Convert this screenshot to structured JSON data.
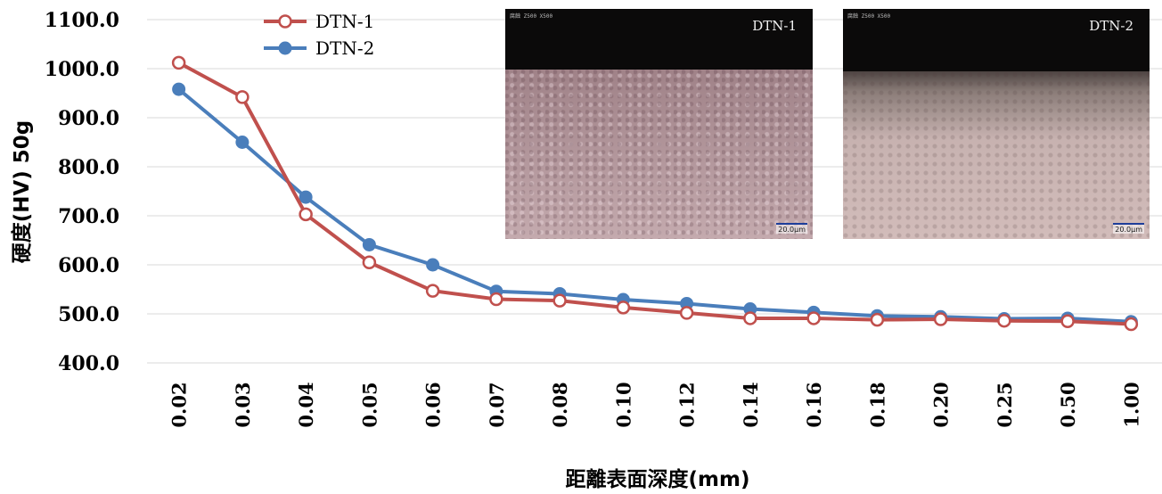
{
  "chart_data": {
    "type": "line",
    "categories": [
      "0.02",
      "0.03",
      "0.04",
      "0.05",
      "0.06",
      "0.07",
      "0.08",
      "0.10",
      "0.12",
      "0.14",
      "0.16",
      "0.18",
      "0.20",
      "0.25",
      "0.50",
      "1.00"
    ],
    "series": [
      {
        "name": "DTN-1",
        "color": "#c0504d",
        "marker": "hollow-circle",
        "values": [
          1012,
          942,
          703,
          605,
          547,
          530,
          527,
          513,
          502,
          491,
          491,
          488,
          489,
          486,
          485,
          479
        ]
      },
      {
        "name": "DTN-2",
        "color": "#4a7ebb",
        "marker": "filled-circle",
        "values": [
          958,
          850,
          738,
          641,
          600,
          546,
          541,
          529,
          521,
          510,
          503,
          496,
          494,
          490,
          491,
          484
        ]
      }
    ],
    "yticks": [
      "1100.0",
      "1000.0",
      "900.0",
      "800.0",
      "700.0",
      "600.0",
      "500.0",
      "400.0"
    ],
    "ylim": [
      400,
      1100
    ],
    "ylabel": "硬度(HV) 50g",
    "xlabel": "距離表面深度(mm)",
    "grid": true,
    "legend": "top-left"
  },
  "insets": [
    {
      "title": "DTN-1",
      "caption": "腐蝕 Z500 X500",
      "scale": "20.0µm"
    },
    {
      "title": "DTN-2",
      "caption": "腐蝕 Z500 X500",
      "scale": "20.0µm"
    }
  ]
}
